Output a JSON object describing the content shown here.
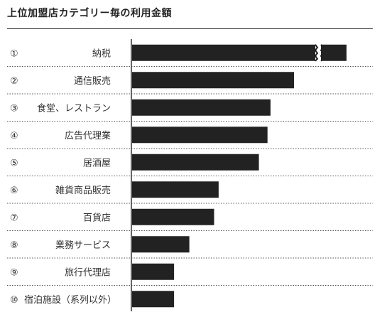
{
  "chart_data": {
    "type": "bar",
    "orientation": "horizontal",
    "title": "上位加盟店カテゴリー毎の利用金額",
    "categories": [
      {
        "num": "①",
        "label": "納税"
      },
      {
        "num": "②",
        "label": "通信販売"
      },
      {
        "num": "③",
        "label": "食堂、レストラン"
      },
      {
        "num": "④",
        "label": "広告代理業"
      },
      {
        "num": "⑤",
        "label": "居酒屋"
      },
      {
        "num": "⑥",
        "label": "雑貨商品販売"
      },
      {
        "num": "⑦",
        "label": "百貨店"
      },
      {
        "num": "⑧",
        "label": "業務サービス"
      },
      {
        "num": "⑨",
        "label": "旅行代理店"
      },
      {
        "num": "⑩",
        "label": "宿泊施設（系列以外）"
      }
    ],
    "values": [
      100,
      75.2,
      64.3,
      62.9,
      58.9,
      40.2,
      38.1,
      26.6,
      19.5,
      19.5
    ],
    "value_unit": "relative (no axis values shown)",
    "axis_break_on_first_bar": true,
    "bar_color": "#222222",
    "grid": false,
    "legend": "none"
  }
}
